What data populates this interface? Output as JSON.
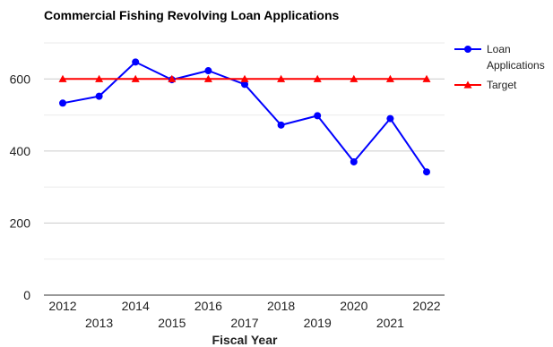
{
  "chart_data": {
    "type": "line",
    "title": "Commercial Fishing Revolving Loan Applications",
    "xlabel": "Fiscal Year",
    "ylabel": "",
    "categories": [
      "2012",
      "2013",
      "2014",
      "2015",
      "2016",
      "2017",
      "2018",
      "2019",
      "2020",
      "2021",
      "2022"
    ],
    "ylim": [
      0,
      700
    ],
    "yticks": [
      0,
      200,
      400,
      600
    ],
    "grid": true,
    "legend_position": "right",
    "series": [
      {
        "name": "Loan Applications",
        "legend_lines": [
          "Loan",
          "Applications"
        ],
        "color": "#0000ff",
        "marker": "circle",
        "values": [
          533,
          552,
          647,
          598,
          623,
          585,
          472,
          498,
          370,
          490,
          342
        ]
      },
      {
        "name": "Target",
        "legend_lines": [
          "Target"
        ],
        "color": "#ff0000",
        "marker": "triangle",
        "values": [
          600,
          600,
          600,
          600,
          600,
          600,
          600,
          600,
          600,
          600,
          600
        ]
      }
    ]
  }
}
